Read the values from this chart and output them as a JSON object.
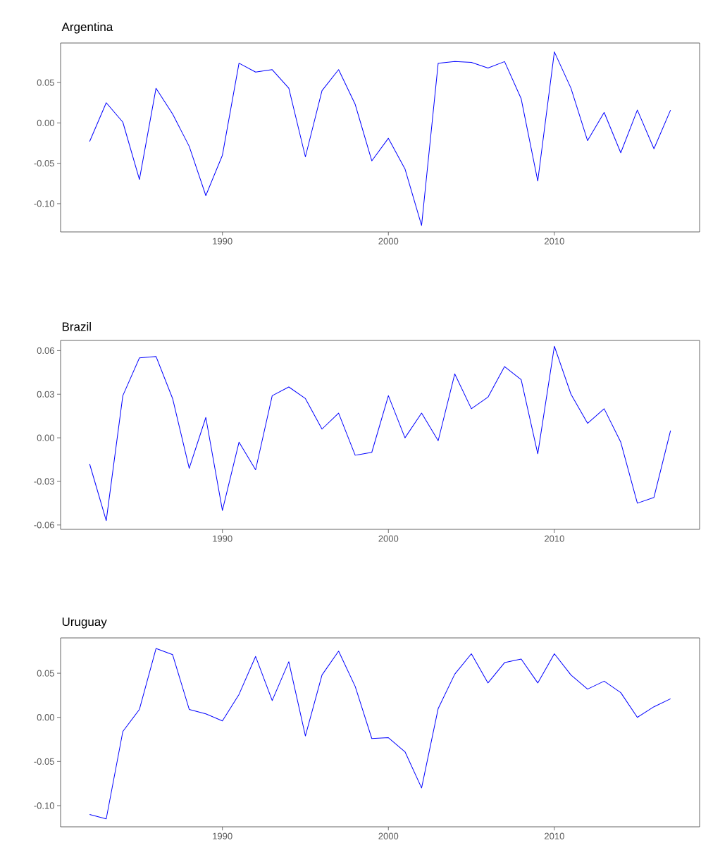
{
  "chart_data": [
    {
      "type": "line",
      "title": "Argentina",
      "color": "#0000ff",
      "x": [
        1982,
        1983,
        1984,
        1985,
        1986,
        1987,
        1988,
        1989,
        1990,
        1991,
        1992,
        1993,
        1994,
        1995,
        1996,
        1997,
        1998,
        1999,
        2000,
        2001,
        2002,
        2003,
        2004,
        2005,
        2006,
        2007,
        2008,
        2009,
        2010,
        2011,
        2012,
        2013,
        2014,
        2015,
        2016,
        2017
      ],
      "values": [
        -0.023,
        0.025,
        0.001,
        -0.07,
        0.043,
        0.011,
        -0.029,
        -0.09,
        -0.04,
        0.074,
        0.063,
        0.066,
        0.043,
        -0.042,
        0.04,
        0.066,
        0.023,
        -0.047,
        -0.019,
        -0.057,
        -0.127,
        0.074,
        0.076,
        0.075,
        0.068,
        0.076,
        0.03,
        -0.072,
        0.088,
        0.043,
        -0.022,
        0.013,
        -0.037,
        0.016,
        -0.032,
        0.016
      ],
      "xlim": [
        1980.25,
        2018.75
      ],
      "ylim": [
        -0.135,
        0.099
      ],
      "xticks": [
        1990,
        2000,
        2010
      ],
      "yticks": [
        {
          "value": -0.1,
          "label": "-0.10"
        },
        {
          "value": -0.05,
          "label": "-0.05"
        },
        {
          "value": 0,
          "label": "0.00"
        },
        {
          "value": 0.05,
          "label": "0.05"
        }
      ]
    },
    {
      "type": "line",
      "title": "Brazil",
      "color": "#0000ff",
      "x": [
        1982,
        1983,
        1984,
        1985,
        1986,
        1987,
        1988,
        1989,
        1990,
        1991,
        1992,
        1993,
        1994,
        1995,
        1996,
        1997,
        1998,
        1999,
        2000,
        2001,
        2002,
        2003,
        2004,
        2005,
        2006,
        2007,
        2008,
        2009,
        2010,
        2011,
        2012,
        2013,
        2014,
        2015,
        2016,
        2017
      ],
      "values": [
        -0.018,
        -0.057,
        0.029,
        0.055,
        0.056,
        0.027,
        -0.021,
        0.014,
        -0.05,
        -0.003,
        -0.022,
        0.029,
        0.035,
        0.027,
        0.006,
        0.017,
        -0.012,
        -0.01,
        0.029,
        0.0,
        0.017,
        -0.002,
        0.044,
        0.02,
        0.028,
        0.049,
        0.04,
        -0.011,
        0.063,
        0.03,
        0.01,
        0.02,
        -0.003,
        -0.045,
        -0.041,
        0.005
      ],
      "xlim": [
        1980.25,
        2018.75
      ],
      "ylim": [
        -0.063,
        0.067
      ],
      "xticks": [
        1990,
        2000,
        2010
      ],
      "yticks": [
        {
          "value": -0.06,
          "label": "-0.06"
        },
        {
          "value": -0.03,
          "label": "-0.03"
        },
        {
          "value": 0,
          "label": "0.00"
        },
        {
          "value": 0.03,
          "label": "0.03"
        },
        {
          "value": 0.06,
          "label": "0.06"
        }
      ]
    },
    {
      "type": "line",
      "title": "Uruguay",
      "color": "#0000ff",
      "x": [
        1982,
        1983,
        1984,
        1985,
        1986,
        1987,
        1988,
        1989,
        1990,
        1991,
        1992,
        1993,
        1994,
        1995,
        1996,
        1997,
        1998,
        1999,
        2000,
        2001,
        2002,
        2003,
        2004,
        2005,
        2006,
        2007,
        2008,
        2009,
        2010,
        2011,
        2012,
        2013,
        2014,
        2015,
        2016,
        2017
      ],
      "values": [
        -0.11,
        -0.115,
        -0.016,
        0.009,
        0.078,
        0.071,
        0.009,
        0.004,
        -0.004,
        0.026,
        0.069,
        0.019,
        0.063,
        -0.021,
        0.048,
        0.075,
        0.035,
        -0.024,
        -0.023,
        -0.039,
        -0.08,
        0.01,
        0.049,
        0.072,
        0.039,
        0.062,
        0.066,
        0.039,
        0.072,
        0.048,
        0.032,
        0.041,
        0.028,
        0.0,
        0.012,
        0.021
      ],
      "xlim": [
        1980.25,
        2018.75
      ],
      "ylim": [
        -0.124,
        0.09
      ],
      "xticks": [
        1990,
        2000,
        2010
      ],
      "yticks": [
        {
          "value": -0.1,
          "label": "-0.10"
        },
        {
          "value": -0.05,
          "label": "-0.05"
        },
        {
          "value": 0,
          "label": "0.00"
        },
        {
          "value": 0.05,
          "label": "0.05"
        }
      ]
    }
  ]
}
